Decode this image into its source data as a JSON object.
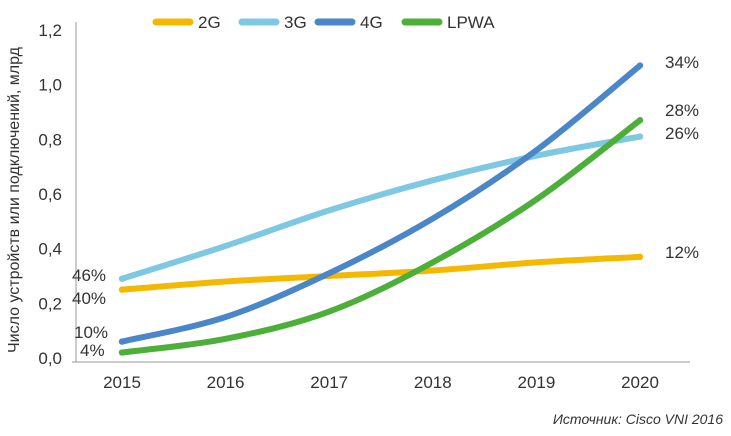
{
  "chart_data": {
    "type": "line",
    "ylabel": "Число устройств или подключений, млрд",
    "x": [
      "2015",
      "2016",
      "2017",
      "2018",
      "2019",
      "2020"
    ],
    "y_ticks": [
      "0,0",
      "0,2",
      "0,4",
      "0,6",
      "0,8",
      "1,0",
      "1,2"
    ],
    "ylim": [
      0,
      1.2
    ],
    "grid": false,
    "legend_position": "top",
    "series": [
      {
        "name": "2G",
        "color": "#F5B800",
        "values": [
          0.25,
          0.28,
          0.3,
          0.32,
          0.35,
          0.37
        ]
      },
      {
        "name": "3G",
        "color": "#7EC8E3",
        "values": [
          0.29,
          0.41,
          0.54,
          0.65,
          0.74,
          0.81
        ]
      },
      {
        "name": "4G",
        "color": "#4A86C8",
        "values": [
          0.06,
          0.15,
          0.31,
          0.51,
          0.76,
          1.07
        ]
      },
      {
        "name": "LPWA",
        "color": "#4BAF3A",
        "values": [
          0.02,
          0.07,
          0.17,
          0.35,
          0.58,
          0.87
        ]
      }
    ],
    "annotations": {
      "start": [
        "46%",
        "40%",
        "10%",
        "4%"
      ],
      "end": [
        "34%",
        "28%",
        "26%",
        "12%"
      ]
    },
    "source": "Источник: Cisco VNI 2016"
  }
}
